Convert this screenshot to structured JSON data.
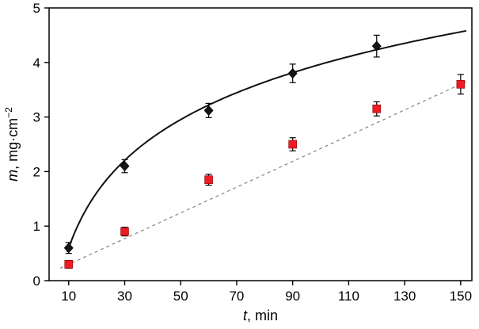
{
  "chart_data": {
    "type": "scatter",
    "title": "",
    "xlabel_italic": "t",
    "xlabel_rest": ", min",
    "ylabel_italic": "m",
    "ylabel_rest": ", mg·cm",
    "ylabel_superscript": "−2",
    "xlim": [
      3,
      154
    ],
    "ylim": [
      0,
      5
    ],
    "xticks": [
      10,
      30,
      50,
      70,
      90,
      110,
      130,
      150
    ],
    "yticks": [
      0,
      1,
      2,
      3,
      4,
      5
    ],
    "grid": false,
    "legend": "none",
    "frame_color": "#000000",
    "series": [
      {
        "name": "black-diamond-series",
        "marker": "diamond",
        "marker_color": "#151515",
        "marker_edge": "#000000",
        "line": {
          "kind": "log",
          "a": 1.463,
          "b": -2.77,
          "style": "solid",
          "color": "#111111",
          "width": 2,
          "x_range": [
            9.5,
            152
          ]
        },
        "x": [
          10,
          30,
          60,
          90,
          120
        ],
        "y": [
          0.6,
          2.1,
          3.12,
          3.8,
          4.3
        ],
        "yerr": [
          0.1,
          0.12,
          0.13,
          0.17,
          0.2
        ]
      },
      {
        "name": "red-square-series",
        "marker": "square",
        "marker_color": "#ed1c24",
        "marker_edge": "#8f0000",
        "line": {
          "kind": "linear",
          "slope": 0.0236,
          "intercept": 0.062,
          "style": "dashed",
          "color": "#8c8c8c",
          "width": 1.3,
          "x_range": [
            7,
            152
          ]
        },
        "x": [
          10,
          30,
          60,
          90,
          120,
          150
        ],
        "y": [
          0.3,
          0.9,
          1.85,
          2.5,
          3.15,
          3.6
        ],
        "yerr": [
          0.07,
          0.08,
          0.1,
          0.12,
          0.13,
          0.18
        ]
      }
    ]
  }
}
